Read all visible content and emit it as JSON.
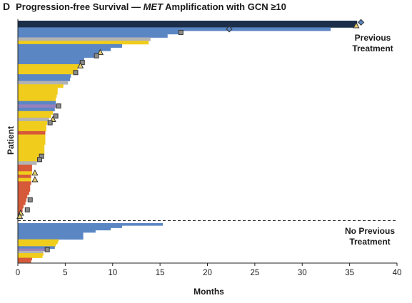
{
  "panel": {
    "letter": "D",
    "title_prefix": "Progression-free Survival — ",
    "title_italic": "MET",
    "title_suffix": " Amplification with GCN ≥10"
  },
  "chart_data": {
    "type": "bar",
    "orientation": "horizontal",
    "title": "Progression-free Survival — MET Amplification with GCN ≥10",
    "xlabel": "Months",
    "ylabel": "Patient",
    "xlim": [
      0,
      40
    ],
    "xticks": [
      0,
      5,
      10,
      15,
      20,
      25,
      30,
      35,
      40
    ],
    "grid": false,
    "colors": {
      "blue": "#5b86c4",
      "yellow": "#f0cd1c",
      "gray": "#b3b3b3",
      "red": "#d65a3a",
      "navy": "#1c2f4a",
      "darkyellow": "#d9b800",
      "purple": "#9481be"
    },
    "groups": [
      {
        "name": "Previous Treatment",
        "label_line1": "Previous",
        "label_line2": "Treatment",
        "bars": [
          {
            "value": 35.8,
            "color": "navy",
            "marker": "diamond",
            "marker_value": 36.2
          },
          {
            "value": 35.7,
            "color": "navy",
            "marker": "triangle",
            "marker_value": 35.7
          },
          {
            "value": 33.0,
            "color": "blue",
            "marker": "diamond",
            "marker_value": 22.3
          },
          {
            "value": 17.2,
            "color": "blue",
            "marker": "square",
            "marker_value": 17.2
          },
          {
            "value": 15.8,
            "color": "blue"
          },
          {
            "value": 14.0,
            "color": "gray"
          },
          {
            "value": 13.8,
            "color": "yellow"
          },
          {
            "value": 11.0,
            "color": "blue"
          },
          {
            "value": 9.8,
            "color": "blue"
          },
          {
            "value": 8.7,
            "color": "blue",
            "marker": "triangle",
            "marker_value": 8.7
          },
          {
            "value": 8.3,
            "color": "blue",
            "marker": "square",
            "marker_value": 8.3
          },
          {
            "value": 7.0,
            "color": "blue"
          },
          {
            "value": 6.8,
            "color": "blue",
            "marker": "square",
            "marker_value": 6.8
          },
          {
            "value": 6.6,
            "color": "yellow",
            "marker": "triangle",
            "marker_value": 6.6
          },
          {
            "value": 6.3,
            "color": "yellow"
          },
          {
            "value": 6.1,
            "color": "yellow",
            "marker": "square",
            "marker_value": 6.1
          },
          {
            "value": 5.6,
            "color": "blue"
          },
          {
            "value": 5.5,
            "color": "blue"
          },
          {
            "value": 5.3,
            "color": "gray"
          },
          {
            "value": 4.8,
            "color": "yellow"
          },
          {
            "value": 4.2,
            "color": "yellow"
          },
          {
            "value": 4.2,
            "color": "yellow"
          },
          {
            "value": 4.1,
            "color": "yellow"
          },
          {
            "value": 4.0,
            "color": "yellow"
          },
          {
            "value": 4.0,
            "color": "blue"
          },
          {
            "value": 4.2,
            "color": "purple",
            "marker": "square",
            "marker_value": 4.3
          },
          {
            "value": 3.9,
            "color": "blue"
          },
          {
            "value": 3.7,
            "color": "yellow"
          },
          {
            "value": 3.5,
            "color": "yellow",
            "marker": "square",
            "marker_value": 4.0
          },
          {
            "value": 3.3,
            "color": "gray",
            "marker": "triangle",
            "marker_value": 3.7
          },
          {
            "value": 3.1,
            "color": "yellow",
            "marker": "square",
            "marker_value": 3.4
          },
          {
            "value": 3.0,
            "color": "yellow"
          },
          {
            "value": 3.0,
            "color": "yellow"
          },
          {
            "value": 2.9,
            "color": "red"
          },
          {
            "value": 2.9,
            "color": "yellow"
          },
          {
            "value": 2.9,
            "color": "yellow"
          },
          {
            "value": 2.9,
            "color": "yellow"
          },
          {
            "value": 2.8,
            "color": "yellow"
          },
          {
            "value": 2.8,
            "color": "yellow"
          },
          {
            "value": 2.8,
            "color": "yellow"
          },
          {
            "value": 2.5,
            "color": "yellow",
            "marker": "square",
            "marker_value": 2.5
          },
          {
            "value": 2.3,
            "color": "yellow",
            "marker": "square",
            "marker_value": 2.3
          },
          {
            "value": 2.0,
            "color": "gray"
          },
          {
            "value": 1.5,
            "color": "red"
          },
          {
            "value": 1.5,
            "color": "red"
          },
          {
            "value": 1.5,
            "color": "yellow",
            "marker": "triangle",
            "marker_value": 1.8
          },
          {
            "value": 1.4,
            "color": "red"
          },
          {
            "value": 1.4,
            "color": "yellow",
            "marker": "triangle",
            "marker_value": 1.8
          },
          {
            "value": 1.4,
            "color": "red"
          },
          {
            "value": 1.3,
            "color": "red"
          },
          {
            "value": 1.3,
            "color": "red"
          },
          {
            "value": 1.2,
            "color": "red"
          },
          {
            "value": 1.0,
            "color": "red"
          },
          {
            "value": 0.9,
            "color": "red",
            "marker": "square",
            "marker_value": 1.3
          },
          {
            "value": 0.8,
            "color": "red"
          },
          {
            "value": 0.6,
            "color": "red"
          },
          {
            "value": 0.5,
            "color": "red",
            "marker": "square",
            "marker_value": 1.0
          },
          {
            "value": 0.3,
            "color": "red",
            "marker": "triangle",
            "marker_value": 0.3
          },
          {
            "value": 0.2,
            "color": "red",
            "marker": "triangle",
            "marker_value": 0.2
          }
        ]
      },
      {
        "name": "No Previous Treatment",
        "label_line1": "No Previous",
        "label_line2": "Treatment",
        "bars": [
          {
            "value": 15.3,
            "color": "blue"
          },
          {
            "value": 11.0,
            "color": "blue"
          },
          {
            "value": 9.8,
            "color": "blue"
          },
          {
            "value": 8.2,
            "color": "blue"
          },
          {
            "value": 6.9,
            "color": "blue"
          },
          {
            "value": 6.9,
            "color": "blue"
          },
          {
            "value": 6.9,
            "color": "blue"
          },
          {
            "value": 4.3,
            "color": "yellow"
          },
          {
            "value": 4.2,
            "color": "yellow"
          },
          {
            "value": 4.0,
            "color": "yellow"
          },
          {
            "value": 3.9,
            "color": "blue"
          },
          {
            "value": 3.1,
            "color": "purple",
            "marker": "square",
            "marker_value": 3.1
          },
          {
            "value": 2.7,
            "color": "gray"
          },
          {
            "value": 2.7,
            "color": "yellow"
          },
          {
            "value": 2.6,
            "color": "yellow"
          },
          {
            "value": 1.5,
            "color": "red"
          },
          {
            "value": 1.4,
            "color": "red"
          }
        ]
      }
    ]
  }
}
